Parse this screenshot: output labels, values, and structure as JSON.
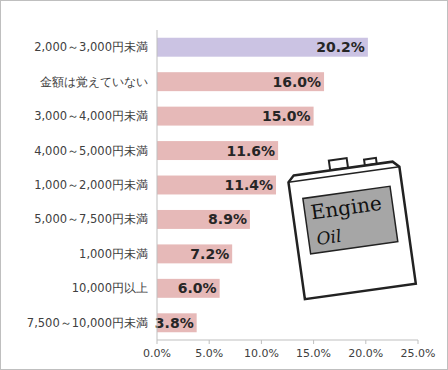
{
  "chart_data": {
    "type": "bar",
    "orientation": "horizontal",
    "categories": [
      "2,000～3,000円未満",
      "金額は覚えていない",
      "3,000～4,000円未満",
      "4,000～5,000円未満",
      "1,000～2,000円未満",
      "5,000～7,500円未満",
      "1,000円未満",
      "10,000円以上",
      "7,500～10,000円未満"
    ],
    "values": [
      20.2,
      16.0,
      15.0,
      11.6,
      11.4,
      8.9,
      7.2,
      6.0,
      3.8
    ],
    "value_labels": [
      "20.2%",
      "16.0%",
      "15.0%",
      "11.6%",
      "11.4%",
      "8.9%",
      "7.2%",
      "6.0%",
      "3.8%"
    ],
    "colors": [
      "#cbc3e3",
      "#e6b9b8",
      "#e6b9b8",
      "#e6b9b8",
      "#e6b9b8",
      "#e6b9b8",
      "#e6b9b8",
      "#e6b9b8",
      "#e6b9b8"
    ],
    "xlim": [
      0,
      25
    ],
    "xticks": [
      {
        "value": 0,
        "label": "0.0%"
      },
      {
        "value": 5,
        "label": "5.0%"
      },
      {
        "value": 10,
        "label": "10.0%"
      },
      {
        "value": 15,
        "label": "15.0%"
      },
      {
        "value": 20,
        "label": "20.0%"
      },
      {
        "value": 25,
        "label": "25.0%"
      }
    ],
    "grid": false,
    "data_labels": true,
    "annotations": [
      "Engine",
      "Oil"
    ]
  }
}
